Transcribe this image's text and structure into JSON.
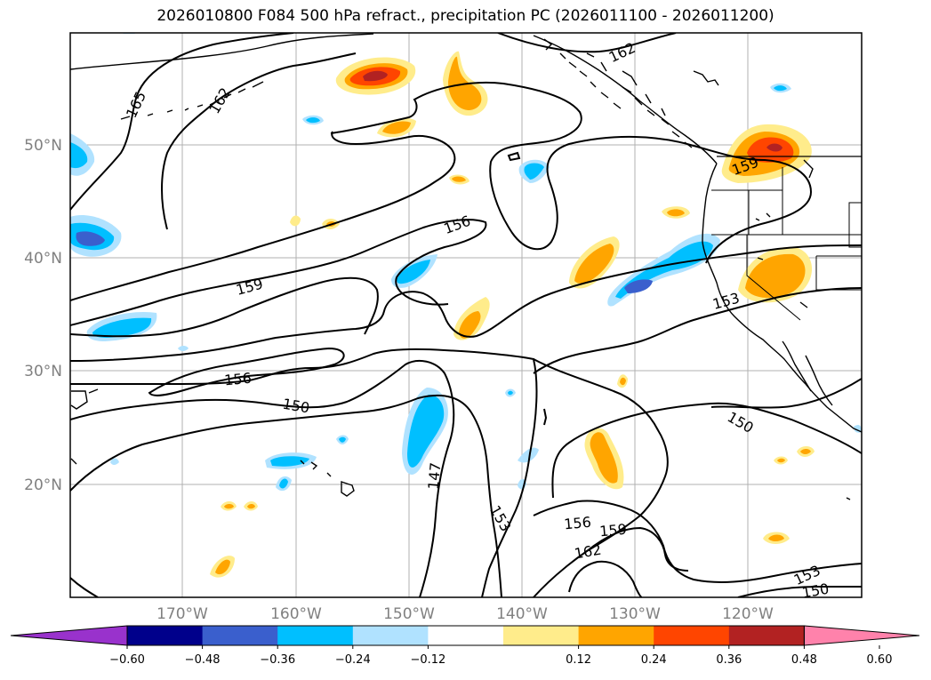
{
  "title": "2026010800 F084 500 hPa refract., precipitation PC (2026011100 - 2026011200)",
  "map": {
    "lon_labels": [
      "170°W",
      "160°W",
      "150°W",
      "140°W",
      "130°W",
      "120°W"
    ],
    "lat_labels": [
      "50°N",
      "40°N",
      "30°N",
      "20°N"
    ],
    "contour_labels": [
      {
        "text": "165",
        "rot": -65
      },
      {
        "text": "162",
        "rot": -60
      },
      {
        "text": "162",
        "rot": -25
      },
      {
        "text": "156",
        "rot": -20
      },
      {
        "text": "159",
        "rot": -15
      },
      {
        "text": "159",
        "rot": -20
      },
      {
        "text": "153",
        "rot": -15
      },
      {
        "text": "156",
        "rot": -5
      },
      {
        "text": "150",
        "rot": 10
      },
      {
        "text": "147",
        "rot": -85
      },
      {
        "text": "153",
        "rot": 60
      },
      {
        "text": "156",
        "rot": -5
      },
      {
        "text": "159",
        "rot": -5
      },
      {
        "text": "162",
        "rot": -10
      },
      {
        "text": "150",
        "rot": 30
      },
      {
        "text": "153",
        "rot": -25
      },
      {
        "text": "150",
        "rot": -10
      }
    ]
  },
  "colorbar": {
    "ticks": [
      "−0.60",
      "−0.48",
      "−0.36",
      "−0.24",
      "−0.12",
      "0.12",
      "0.24",
      "0.36",
      "0.48",
      "0.60"
    ],
    "colors": [
      "#9932cc",
      "#00008b",
      "#3a5fcd",
      "#00bfff",
      "#b0e2ff",
      "#ffffff",
      "#ffec8b",
      "#ffa500",
      "#ff4500",
      "#b22222",
      "#ff82ab"
    ]
  }
}
